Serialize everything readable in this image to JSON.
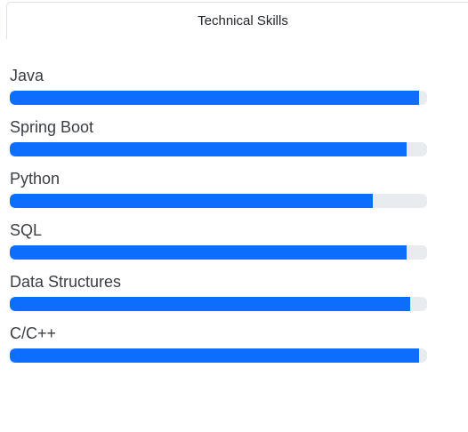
{
  "tabs": [
    {
      "label": "Technical Skills",
      "active": true
    }
  ],
  "skills": [
    {
      "name": "Java",
      "percent": 98
    },
    {
      "name": "Spring Boot",
      "percent": 95
    },
    {
      "name": "Python",
      "percent": 87
    },
    {
      "name": "SQL",
      "percent": 95
    },
    {
      "name": "Data Structures",
      "percent": 96
    },
    {
      "name": "C/C++",
      "percent": 98
    }
  ],
  "colors": {
    "bar_fill": "#0d6efd",
    "bar_track": "#e9ecef"
  }
}
